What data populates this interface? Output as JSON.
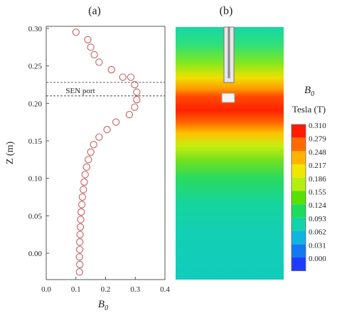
{
  "chart_data": [
    {
      "panel_label": "(a)",
      "type": "scatter",
      "xlabel_base": "B",
      "xlabel_sub": "0",
      "ylabel": "Z (m)",
      "xlim": [
        0.0,
        0.4
      ],
      "ylim": [
        -0.03,
        0.3
      ],
      "xticks": [
        "0.0",
        "0.1",
        "0.2",
        "0.3",
        "0.4"
      ],
      "yticks": [
        "0.30",
        "0.25",
        "0.20",
        "0.15",
        "0.10",
        "0.05",
        "0.00"
      ],
      "annotation": "SEN port",
      "sen_port_z": [
        0.228,
        0.21
      ],
      "marker_color": "#c46060",
      "points": [
        {
          "x": 0.112,
          "y": -0.025
        },
        {
          "x": 0.113,
          "y": -0.015
        },
        {
          "x": 0.112,
          "y": -0.005
        },
        {
          "x": 0.113,
          "y": 0.005
        },
        {
          "x": 0.113,
          "y": 0.015
        },
        {
          "x": 0.114,
          "y": 0.025
        },
        {
          "x": 0.115,
          "y": 0.035
        },
        {
          "x": 0.116,
          "y": 0.045
        },
        {
          "x": 0.118,
          "y": 0.055
        },
        {
          "x": 0.12,
          "y": 0.065
        },
        {
          "x": 0.122,
          "y": 0.075
        },
        {
          "x": 0.125,
          "y": 0.085
        },
        {
          "x": 0.128,
          "y": 0.095
        },
        {
          "x": 0.131,
          "y": 0.105
        },
        {
          "x": 0.136,
          "y": 0.115
        },
        {
          "x": 0.142,
          "y": 0.125
        },
        {
          "x": 0.15,
          "y": 0.135
        },
        {
          "x": 0.16,
          "y": 0.145
        },
        {
          "x": 0.178,
          "y": 0.155
        },
        {
          "x": 0.205,
          "y": 0.165
        },
        {
          "x": 0.235,
          "y": 0.175
        },
        {
          "x": 0.28,
          "y": 0.185
        },
        {
          "x": 0.298,
          "y": 0.195
        },
        {
          "x": 0.305,
          "y": 0.205
        },
        {
          "x": 0.305,
          "y": 0.215
        },
        {
          "x": 0.298,
          "y": 0.225
        },
        {
          "x": 0.285,
          "y": 0.235
        },
        {
          "x": 0.258,
          "y": 0.235
        },
        {
          "x": 0.22,
          "y": 0.245
        },
        {
          "x": 0.178,
          "y": 0.255
        },
        {
          "x": 0.162,
          "y": 0.265
        },
        {
          "x": 0.15,
          "y": 0.275
        },
        {
          "x": 0.14,
          "y": 0.285
        },
        {
          "x": 0.1,
          "y": 0.295
        }
      ]
    },
    {
      "panel_label": "(b)",
      "type": "heatmap",
      "colorbar_title_base": "B",
      "colorbar_title_sub": "0",
      "colorbar_unit": "Tesla (T)",
      "levels": [
        "0.310",
        "0.279",
        "0.248",
        "0.217",
        "0.186",
        "0.155",
        "0.124",
        "0.093",
        "0.062",
        "0.031",
        "0.000"
      ],
      "level_colors": [
        "#ff1a00",
        "#ff6a00",
        "#ffb400",
        "#f0e600",
        "#b4ee10",
        "#5ae000",
        "#1edc5a",
        "#12d4a8",
        "#10b4e0",
        "#1478f0",
        "#1e3cff"
      ]
    }
  ]
}
